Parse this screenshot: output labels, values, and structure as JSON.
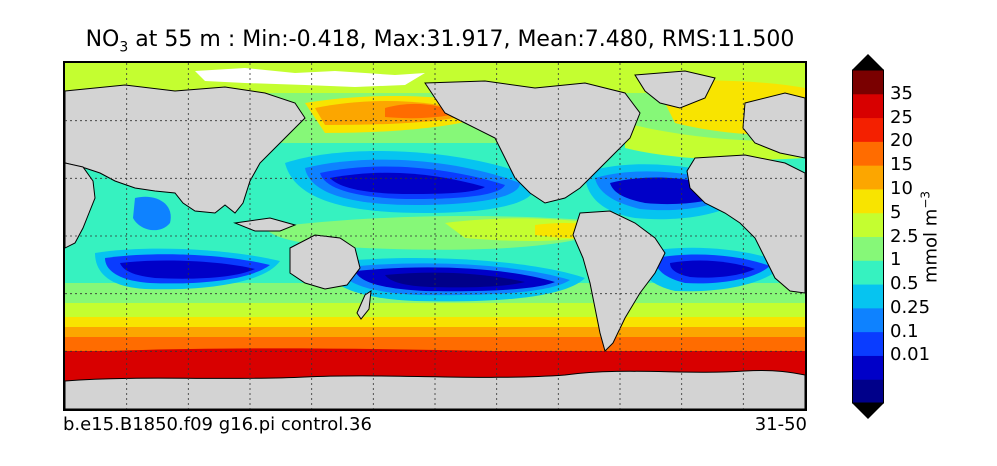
{
  "title": {
    "variable_main": "NO",
    "variable_sub": "3",
    "depth": "at 55 m",
    "stats": ": Min:-0.418, Max:31.917, Mean:7.480, RMS:11.500"
  },
  "footer": {
    "case": "b.e15.B1850.f09 g16.pi control.36",
    "years": "31-50"
  },
  "colorbar": {
    "units_main": "mmol m",
    "units_sup": "−3",
    "ticks": [
      "35",
      "25",
      "20",
      "15",
      "10",
      "5",
      "2.5",
      "1",
      "0.5",
      "0.25",
      "0.1",
      "0.01"
    ],
    "colors": [
      "#00008a",
      "#0000c8",
      "#0a3cff",
      "#0e82ff",
      "#06c4f0",
      "#36f2c0",
      "#86f878",
      "#c4fe30",
      "#f8e400",
      "#fca600",
      "#ff6c00",
      "#f42000",
      "#d80000",
      "#7a0000"
    ],
    "extend": "both"
  },
  "map": {
    "land_color": "#d3d3d3",
    "gridlines": "dotted"
  }
}
